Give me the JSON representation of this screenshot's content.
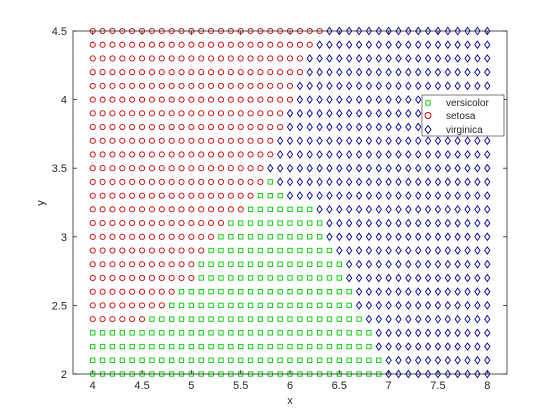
{
  "chart_data": {
    "type": "scatter",
    "xlabel": "x",
    "ylabel": "y",
    "xlim": [
      3.8,
      8.2
    ],
    "ylim": [
      2,
      4.5
    ],
    "x_ticks": [
      4,
      4.5,
      5,
      5.5,
      6,
      6.5,
      7,
      7.5,
      8
    ],
    "x_tick_labels": [
      "4",
      "4.5",
      "5",
      "5.5",
      "6",
      "6.5",
      "7",
      "7.5",
      "8"
    ],
    "y_ticks": [
      2,
      2.5,
      3,
      3.5,
      4,
      4.5
    ],
    "y_tick_labels": [
      "2",
      "2.5",
      "3",
      "3.5",
      "4",
      "4.5"
    ],
    "grid": false,
    "legend_position": "top-right",
    "grid_points": {
      "x_start": 4,
      "x_end": 8,
      "x_step": 0.1,
      "y_start": 2,
      "y_end": 4.5,
      "y_step": 0.1
    },
    "series": [
      {
        "name": "versicolor",
        "marker": "square",
        "color": "#00cc00",
        "region_rows": [
          {
            "y": 2.0,
            "x_from": 4.0,
            "x_to": 6.9
          },
          {
            "y": 2.1,
            "x_from": 4.0,
            "x_to": 6.9
          },
          {
            "y": 2.2,
            "x_from": 4.0,
            "x_to": 6.8
          },
          {
            "y": 2.3,
            "x_from": 4.0,
            "x_to": 6.8
          },
          {
            "y": 2.4,
            "x_from": 4.6,
            "x_to": 6.7
          },
          {
            "y": 2.5,
            "x_from": 4.8,
            "x_to": 6.6
          },
          {
            "y": 2.6,
            "x_from": 4.9,
            "x_to": 6.6
          },
          {
            "y": 2.7,
            "x_from": 5.1,
            "x_to": 6.5
          },
          {
            "y": 2.8,
            "x_from": 5.1,
            "x_to": 6.5
          },
          {
            "y": 2.9,
            "x_from": 5.2,
            "x_to": 6.4
          },
          {
            "y": 3.0,
            "x_from": 5.3,
            "x_to": 6.3
          },
          {
            "y": 3.1,
            "x_from": 5.4,
            "x_to": 6.3
          },
          {
            "y": 3.2,
            "x_from": 5.6,
            "x_to": 6.2
          },
          {
            "y": 3.3,
            "x_from": 5.7,
            "x_to": 5.9
          },
          {
            "y": 3.4,
            "x_from": 5.8,
            "x_to": 5.8
          }
        ]
      },
      {
        "name": "setosa",
        "marker": "circle",
        "color": "#cc0000",
        "region_rows": [
          {
            "y": 2.4,
            "x_from": 4.0,
            "x_to": 4.5
          },
          {
            "y": 2.5,
            "x_from": 4.0,
            "x_to": 4.7
          },
          {
            "y": 2.6,
            "x_from": 4.0,
            "x_to": 4.8
          },
          {
            "y": 2.7,
            "x_from": 4.0,
            "x_to": 5.0
          },
          {
            "y": 2.8,
            "x_from": 4.0,
            "x_to": 5.0
          },
          {
            "y": 2.9,
            "x_from": 4.0,
            "x_to": 5.1
          },
          {
            "y": 3.0,
            "x_from": 4.0,
            "x_to": 5.2
          },
          {
            "y": 3.1,
            "x_from": 4.0,
            "x_to": 5.3
          },
          {
            "y": 3.2,
            "x_from": 4.0,
            "x_to": 5.5
          },
          {
            "y": 3.3,
            "x_from": 4.0,
            "x_to": 5.6
          },
          {
            "y": 3.4,
            "x_from": 4.0,
            "x_to": 5.7
          },
          {
            "y": 3.5,
            "x_from": 4.0,
            "x_to": 5.7
          },
          {
            "y": 3.6,
            "x_from": 4.0,
            "x_to": 5.8
          },
          {
            "y": 3.7,
            "x_from": 4.0,
            "x_to": 5.8
          },
          {
            "y": 3.8,
            "x_from": 4.0,
            "x_to": 5.9
          },
          {
            "y": 3.9,
            "x_from": 4.0,
            "x_to": 5.9
          },
          {
            "y": 4.0,
            "x_from": 4.0,
            "x_to": 6.0
          },
          {
            "y": 4.1,
            "x_from": 4.0,
            "x_to": 6.0
          },
          {
            "y": 4.2,
            "x_from": 4.0,
            "x_to": 6.1
          },
          {
            "y": 4.3,
            "x_from": 4.0,
            "x_to": 6.1
          },
          {
            "y": 4.4,
            "x_from": 4.0,
            "x_to": 6.2
          },
          {
            "y": 4.5,
            "x_from": 4.0,
            "x_to": 6.3
          }
        ]
      },
      {
        "name": "virginica",
        "marker": "diamond",
        "color": "#000099",
        "region": "remaining"
      }
    ]
  }
}
